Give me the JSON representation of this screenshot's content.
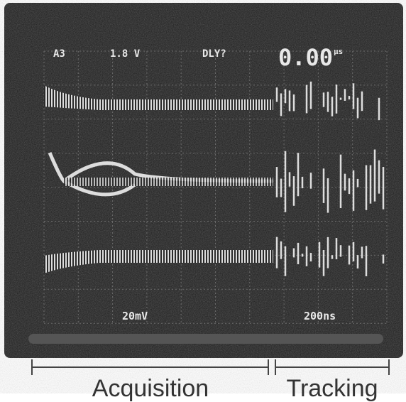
{
  "screen": {
    "channel": "A3",
    "volts": "1.8 V",
    "delay": "DLY?",
    "time": "0.00",
    "time_unit": "μs",
    "scale": "20mV",
    "timebase": "200ns"
  },
  "labels": {
    "acquisition": "Acquisition",
    "tracking": "Tracking"
  }
}
